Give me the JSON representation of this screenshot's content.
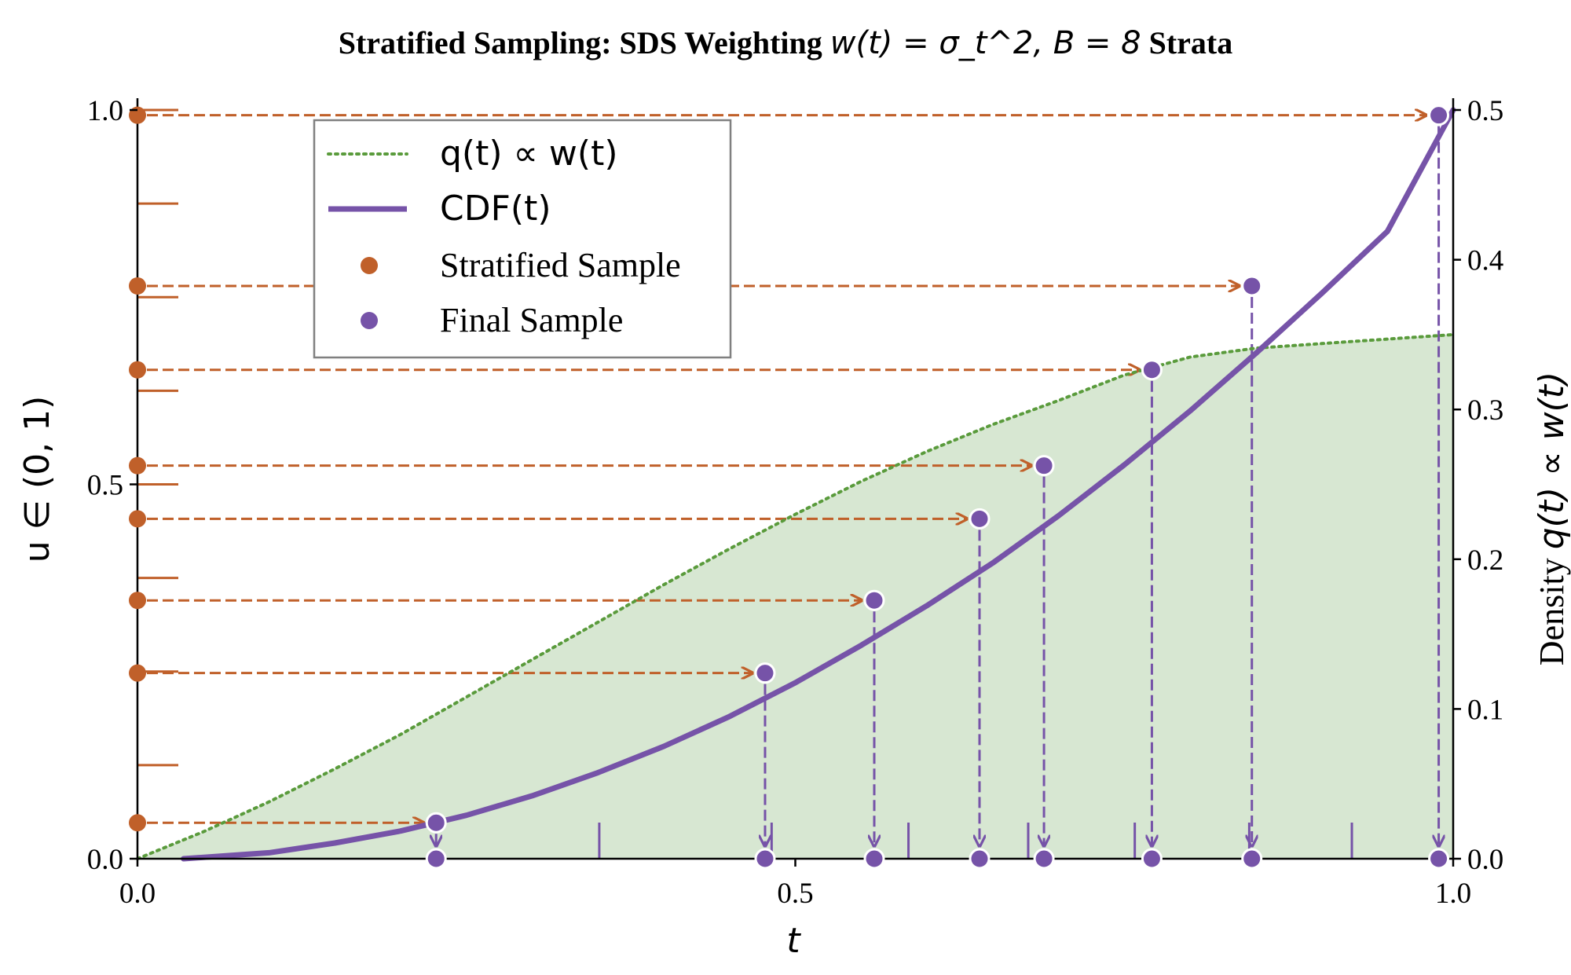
{
  "chart_data": {
    "type": "line",
    "title": "Stratified Sampling: SDS Weighting",
    "title_math": "w(t) = σ_t^2, B = 8",
    "title_suffix": "Strata",
    "xlabel": "t",
    "ylabel_left": "u ∈ (0, 1)",
    "ylabel_right_prefix": "Density",
    "ylabel_right_math": "q(t) ∝ w(t)",
    "xlim": [
      0.0,
      1.0
    ],
    "ylim_left": [
      0.0,
      1.0
    ],
    "ylim_right": [
      0.0,
      0.5
    ],
    "x_ticks": [
      "0.0",
      "0.5",
      "1.0"
    ],
    "y_left_ticks": [
      "0.0",
      "0.5",
      "1.0"
    ],
    "y_right_ticks": [
      "0.0",
      "0.1",
      "0.2",
      "0.3",
      "0.4",
      "0.5"
    ],
    "grid": false,
    "legend_position": "upper-left",
    "legend": [
      {
        "label": "q(t) ∝ w(t)",
        "style": "dotted-line",
        "color": "#5a9b3c"
      },
      {
        "label": "CDF(t)",
        "style": "solid-line",
        "color": "#7653a8"
      },
      {
        "label": "Stratified Sample",
        "style": "marker",
        "color": "#c0602a"
      },
      {
        "label": "Final Sample",
        "style": "marker",
        "color": "#7653a8"
      }
    ],
    "density_curve": {
      "t": [
        0.0,
        0.05,
        0.1,
        0.15,
        0.2,
        0.25,
        0.3,
        0.35,
        0.4,
        0.45,
        0.5,
        0.55,
        0.6,
        0.65,
        0.7,
        0.75,
        0.8,
        0.85,
        0.9,
        0.95,
        1.0
      ],
      "q": [
        0.0,
        0.018,
        0.038,
        0.06,
        0.083,
        0.108,
        0.133,
        0.158,
        0.183,
        0.207,
        0.23,
        0.252,
        0.272,
        0.29,
        0.306,
        0.323,
        0.335,
        0.341,
        0.344,
        0.347,
        0.35
      ]
    },
    "cdf_curve": {
      "t": [
        0.035,
        0.1,
        0.15,
        0.2,
        0.25,
        0.3,
        0.35,
        0.4,
        0.45,
        0.5,
        0.55,
        0.6,
        0.65,
        0.7,
        0.75,
        0.8,
        0.85,
        0.9,
        0.95,
        1.0
      ],
      "u": [
        0.0,
        0.008,
        0.021,
        0.037,
        0.058,
        0.084,
        0.115,
        0.15,
        0.19,
        0.235,
        0.285,
        0.338,
        0.395,
        0.458,
        0.526,
        0.598,
        0.675,
        0.755,
        0.838,
        1.0
      ]
    },
    "strata_boundaries_u": [
      0.125,
      0.25,
      0.375,
      0.5,
      0.625,
      0.75,
      0.875,
      1.0
    ],
    "strata_boundaries_t": [
      0.351,
      0.482,
      0.586,
      0.677,
      0.758,
      0.845,
      0.923
    ],
    "stratified_samples_u": [
      0.048,
      0.248,
      0.345,
      0.454,
      0.525,
      0.653,
      0.765,
      0.993
    ],
    "final_samples_t": [
      0.227,
      0.477,
      0.56,
      0.64,
      0.689,
      0.771,
      0.847,
      0.989
    ],
    "colors": {
      "density": "#5a9b3c",
      "density_fill": "#d7e7d2",
      "cdf": "#7653a8",
      "stratified": "#c0602a",
      "final": "#7653a8"
    }
  }
}
